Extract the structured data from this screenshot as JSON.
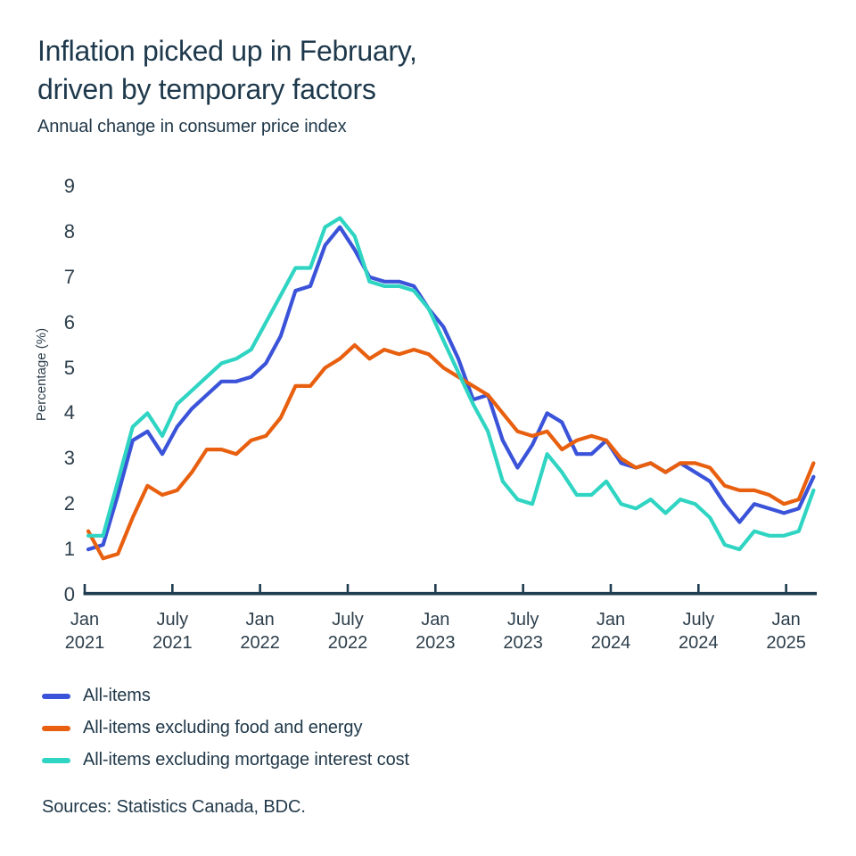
{
  "title": {
    "line1": "Inflation picked up in February,",
    "line2": "driven by temporary factors"
  },
  "subtitle": "Annual change in consumer price index",
  "sources": "Sources: Statistics Canada, BDC.",
  "colors": {
    "axis": "#1f3c50",
    "text": "#1e394c",
    "tick_text": "#2c3e4b",
    "all_items": "#3a53d9",
    "ex_food_energy": "#e8600f",
    "ex_mortgage": "#2fd5c2"
  },
  "y_axis": {
    "label": "Percentage (%)",
    "ticks": [
      "0",
      "1",
      "2",
      "3",
      "4",
      "5",
      "6",
      "7",
      "8",
      "9"
    ]
  },
  "x_axis": {
    "ticks": [
      {
        "line1": "Jan",
        "line2": "2021"
      },
      {
        "line1": "July",
        "line2": "2021"
      },
      {
        "line1": "Jan",
        "line2": "2022"
      },
      {
        "line1": "July",
        "line2": "2022"
      },
      {
        "line1": "Jan",
        "line2": "2023"
      },
      {
        "line1": "July",
        "line2": "2023"
      },
      {
        "line1": "Jan",
        "line2": "2024"
      },
      {
        "line1": "July",
        "line2": "2024"
      },
      {
        "line1": "Jan",
        "line2": "2025"
      }
    ]
  },
  "legend": [
    {
      "label": "All-items",
      "color": "#3a53d9"
    },
    {
      "label": "All-items excluding food and energy",
      "color": "#e8600f"
    },
    {
      "label": "All-items excluding mortgage interest cost",
      "color": "#2fd5c2"
    }
  ],
  "chart_data": {
    "type": "line",
    "title": "Inflation picked up in February, driven by temporary factors",
    "subtitle": "Annual change in consumer price index",
    "xlabel": "",
    "ylabel": "Percentage (%)",
    "ylim": [
      0,
      9
    ],
    "grid": false,
    "legend_position": "bottom-left",
    "x": [
      "Jan 2021",
      "Feb 2021",
      "Mar 2021",
      "Apr 2021",
      "May 2021",
      "Jun 2021",
      "Jul 2021",
      "Aug 2021",
      "Sep 2021",
      "Oct 2021",
      "Nov 2021",
      "Dec 2021",
      "Jan 2022",
      "Feb 2022",
      "Mar 2022",
      "Apr 2022",
      "May 2022",
      "Jun 2022",
      "Jul 2022",
      "Aug 2022",
      "Sep 2022",
      "Oct 2022",
      "Nov 2022",
      "Dec 2022",
      "Jan 2023",
      "Feb 2023",
      "Mar 2023",
      "Apr 2023",
      "May 2023",
      "Jun 2023",
      "Jul 2023",
      "Aug 2023",
      "Sep 2023",
      "Oct 2023",
      "Nov 2023",
      "Dec 2023",
      "Jan 2024",
      "Feb 2024",
      "Mar 2024",
      "Apr 2024",
      "May 2024",
      "Jun 2024",
      "Jul 2024",
      "Aug 2024",
      "Sep 2024",
      "Oct 2024",
      "Nov 2024",
      "Dec 2024",
      "Jan 2025",
      "Feb 2025"
    ],
    "series": [
      {
        "name": "All-items",
        "color": "#3a53d9",
        "values": [
          1.0,
          1.1,
          2.2,
          3.4,
          3.6,
          3.1,
          3.7,
          4.1,
          4.4,
          4.7,
          4.7,
          4.8,
          5.1,
          5.7,
          6.7,
          6.8,
          7.7,
          8.1,
          7.6,
          7.0,
          6.9,
          6.9,
          6.8,
          6.3,
          5.9,
          5.2,
          4.3,
          4.4,
          3.4,
          2.8,
          3.3,
          4.0,
          3.8,
          3.1,
          3.1,
          3.4,
          2.9,
          2.8,
          2.9,
          2.7,
          2.9,
          2.7,
          2.5,
          2.0,
          1.6,
          2.0,
          1.9,
          1.8,
          1.9,
          2.6
        ]
      },
      {
        "name": "All-items excluding food and energy",
        "color": "#e8600f",
        "values": [
          1.4,
          0.8,
          0.9,
          1.7,
          2.4,
          2.2,
          2.3,
          2.7,
          3.2,
          3.2,
          3.1,
          3.4,
          3.5,
          3.9,
          4.6,
          4.6,
          5.0,
          5.2,
          5.5,
          5.2,
          5.4,
          5.3,
          5.4,
          5.3,
          5.0,
          4.8,
          4.6,
          4.4,
          4.0,
          3.6,
          3.5,
          3.6,
          3.2,
          3.4,
          3.5,
          3.4,
          3.0,
          2.8,
          2.9,
          2.7,
          2.9,
          2.9,
          2.8,
          2.4,
          2.3,
          2.3,
          2.2,
          2.0,
          2.1,
          2.9
        ]
      },
      {
        "name": "All-items excluding mortgage interest cost",
        "color": "#2fd5c2",
        "values": [
          1.3,
          1.3,
          2.5,
          3.7,
          4.0,
          3.5,
          4.2,
          4.5,
          4.8,
          5.1,
          5.2,
          5.4,
          6.0,
          6.6,
          7.2,
          7.2,
          8.1,
          8.3,
          7.9,
          6.9,
          6.8,
          6.8,
          6.7,
          6.3,
          5.6,
          4.9,
          4.2,
          3.6,
          2.5,
          2.1,
          2.0,
          3.1,
          2.7,
          2.2,
          2.2,
          2.5,
          2.0,
          1.9,
          2.1,
          1.8,
          2.1,
          2.0,
          1.7,
          1.1,
          1.0,
          1.4,
          1.3,
          1.3,
          1.4,
          2.3
        ]
      }
    ]
  }
}
